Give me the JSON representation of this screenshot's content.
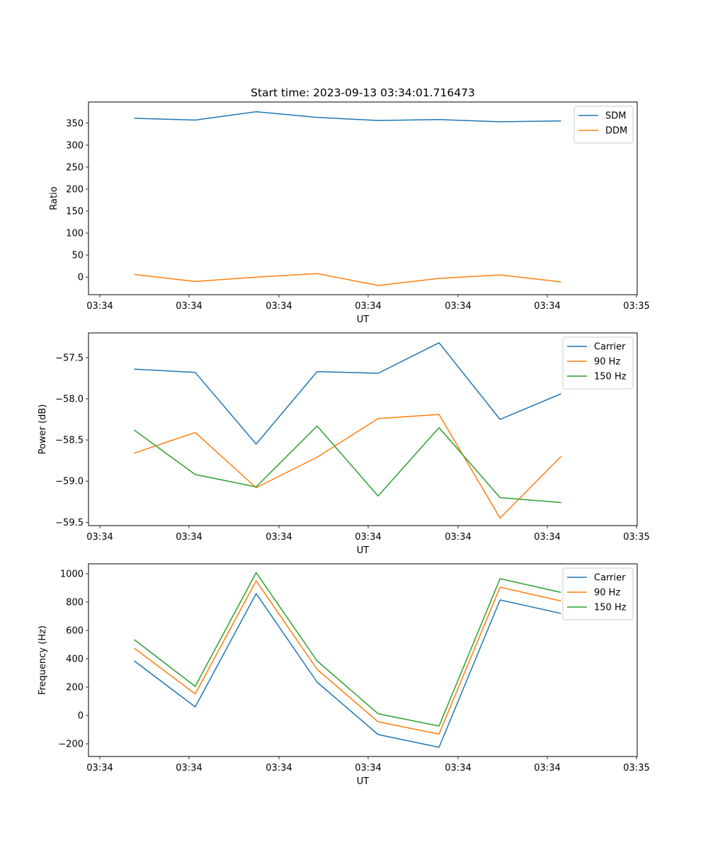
{
  "chart_data": [
    {
      "type": "line",
      "title": "Start time: 2023-09-13 03:34:01.716473",
      "xlabel": "UT",
      "ylabel": "Ratio",
      "x_tick_labels": [
        "03:34",
        "03:34",
        "03:34",
        "03:34",
        "03:34",
        "03:34",
        "03:34",
        "03:35"
      ],
      "x": [
        1,
        2,
        3,
        4,
        5,
        6,
        7,
        8
      ],
      "xlim": [
        0.25,
        9.25
      ],
      "ylim": [
        -40,
        398
      ],
      "yticks": [
        0,
        50,
        100,
        150,
        200,
        250,
        300,
        350
      ],
      "legend_loc": "upper right",
      "series": [
        {
          "name": "SDM",
          "color": "#1f77b4",
          "values": [
            361,
            357,
            376,
            363,
            356,
            358,
            353,
            355
          ]
        },
        {
          "name": "DDM",
          "color": "#ff7f0e",
          "values": [
            6,
            -10,
            0,
            8,
            -19,
            -3,
            5,
            -11
          ]
        }
      ]
    },
    {
      "type": "line",
      "title": "",
      "xlabel": "UT",
      "ylabel": "Power (dB)",
      "x_tick_labels": [
        "03:34",
        "03:34",
        "03:34",
        "03:34",
        "03:34",
        "03:34",
        "03:34",
        "03:35"
      ],
      "x": [
        1,
        2,
        3,
        4,
        5,
        6,
        7,
        8
      ],
      "xlim": [
        0.25,
        9.25
      ],
      "ylim": [
        -59.54,
        -57.2
      ],
      "yticks": [
        -57.5,
        -58.0,
        -58.5,
        -59.0,
        -59.5
      ],
      "ytick_labels": [
        "−57.5",
        "−58.0",
        "−58.5",
        "−59.0",
        "−59.5"
      ],
      "legend_loc": "upper right",
      "series": [
        {
          "name": "Carrier",
          "color": "#1f77b4",
          "values": [
            -57.64,
            -57.68,
            -58.55,
            -57.67,
            -57.69,
            -57.32,
            -58.25,
            -57.94
          ]
        },
        {
          "name": "90 Hz",
          "color": "#ff7f0e",
          "values": [
            -58.66,
            -58.41,
            -59.08,
            -58.71,
            -58.24,
            -58.19,
            -59.45,
            -58.7
          ]
        },
        {
          "name": "150 Hz",
          "color": "#2ca02c",
          "values": [
            -58.38,
            -58.92,
            -59.07,
            -58.33,
            -59.18,
            -58.35,
            -59.2,
            -59.26
          ]
        }
      ]
    },
    {
      "type": "line",
      "title": "",
      "xlabel": "UT",
      "ylabel": "Frequency (Hz)",
      "x_tick_labels": [
        "03:34",
        "03:34",
        "03:34",
        "03:34",
        "03:34",
        "03:34",
        "03:34",
        "03:35"
      ],
      "x": [
        1,
        2,
        3,
        4,
        5,
        6,
        7,
        8
      ],
      "xlim": [
        0.25,
        9.25
      ],
      "ylim": [
        -290,
        1070
      ],
      "yticks": [
        -200,
        0,
        200,
        400,
        600,
        800,
        1000
      ],
      "ytick_labels": [
        "−200",
        "0",
        "200",
        "400",
        "600",
        "800",
        "1000"
      ],
      "legend_loc": "upper right",
      "series": [
        {
          "name": "Carrier",
          "color": "#1f77b4",
          "values": [
            385,
            60,
            860,
            235,
            -135,
            -225,
            815,
            720
          ]
        },
        {
          "name": "90 Hz",
          "color": "#ff7f0e",
          "values": [
            475,
            152,
            950,
            325,
            -45,
            -132,
            905,
            808
          ]
        },
        {
          "name": "150 Hz",
          "color": "#2ca02c",
          "values": [
            535,
            205,
            1008,
            385,
            12,
            -75,
            965,
            868
          ]
        }
      ]
    }
  ]
}
